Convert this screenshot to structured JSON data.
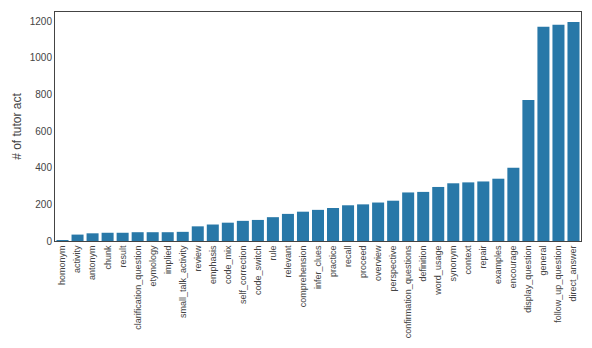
{
  "chart_data": {
    "type": "bar",
    "categories": [
      "homonym",
      "activity",
      "antonym",
      "chunk",
      "result",
      "clarification_question",
      "etymology",
      "implied",
      "small_talk_activity",
      "review",
      "emphasis",
      "code_mix",
      "self_correction",
      "code_switch",
      "rule",
      "relevant",
      "comprehension",
      "infer_clues",
      "practice",
      "recall",
      "proceed",
      "overview",
      "perspective",
      "confirmation_questions",
      "definition",
      "word_usage",
      "synonym",
      "context",
      "repair",
      "examples",
      "encourage",
      "display_question",
      "general",
      "follow_up_question",
      "direct_answer"
    ],
    "values": [
      2,
      35,
      42,
      45,
      45,
      48,
      48,
      48,
      50,
      80,
      90,
      100,
      110,
      115,
      130,
      148,
      160,
      170,
      180,
      195,
      200,
      210,
      220,
      265,
      268,
      295,
      315,
      320,
      325,
      340,
      400,
      770,
      1170,
      1180,
      1195
    ],
    "color": "#2878a8",
    "ylabel": "# of tutor act",
    "ylim": [
      0,
      1250
    ],
    "yticks": [
      0,
      200,
      400,
      600,
      800,
      1000,
      1200
    ],
    "grid": false
  }
}
